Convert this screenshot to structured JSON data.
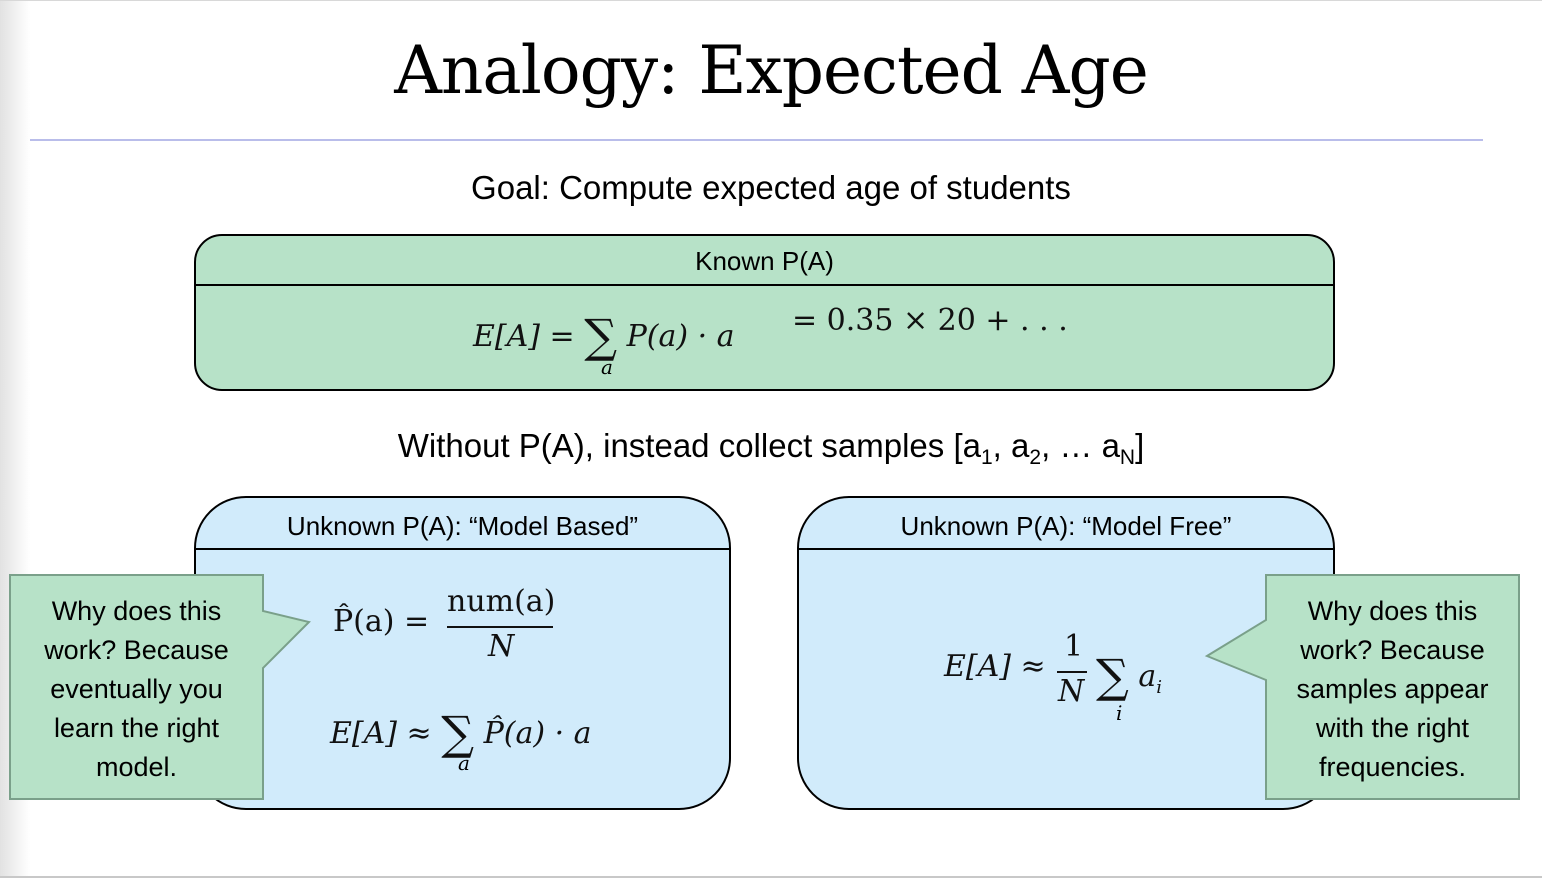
{
  "slide": {
    "title": "Analogy: Expected Age",
    "goal": "Goal: Compute expected age of students",
    "known_box": {
      "header": "Known P(A)",
      "formula_lhs": "E[A] =",
      "formula_body": "P(a) · a",
      "formula_rhs": "= 0.35 × 20 + . . .",
      "sum_index": "a"
    },
    "without": {
      "prefix": "Without P(A), instead collect samples [a",
      "sub1": "1",
      "mid1": ", a",
      "sub2": "2",
      "mid2": ", … a",
      "subN": "N",
      "suffix": "]"
    },
    "model_based": {
      "header": "Unknown P(A): “Model Based”",
      "phat_lhs": "P̂(a) =",
      "phat_num": "num(a)",
      "phat_den": "N",
      "ea_lhs": "E[A] ≈",
      "ea_body": "P̂(a) · a",
      "sum_index": "a"
    },
    "model_free": {
      "header": "Unknown P(A): “Model Free”",
      "ea_lhs": "E[A] ≈",
      "frac_num": "1",
      "frac_den": "N",
      "ea_body": "a",
      "ea_body_sub": "i",
      "sum_index": "i"
    },
    "callouts": {
      "left": [
        "Why does this",
        "work?  Because",
        "eventually you",
        "learn the right",
        "model."
      ],
      "right": [
        "Why does this",
        "work?  Because",
        "samples appear",
        "with the right",
        "frequencies."
      ]
    },
    "colors": {
      "green_box": "#b7e2c8",
      "blue_box": "#d1ebfb",
      "callout_fill": "#b7e2c8",
      "callout_border": "#7aa08a",
      "title_rule": "#b9bdea"
    }
  }
}
